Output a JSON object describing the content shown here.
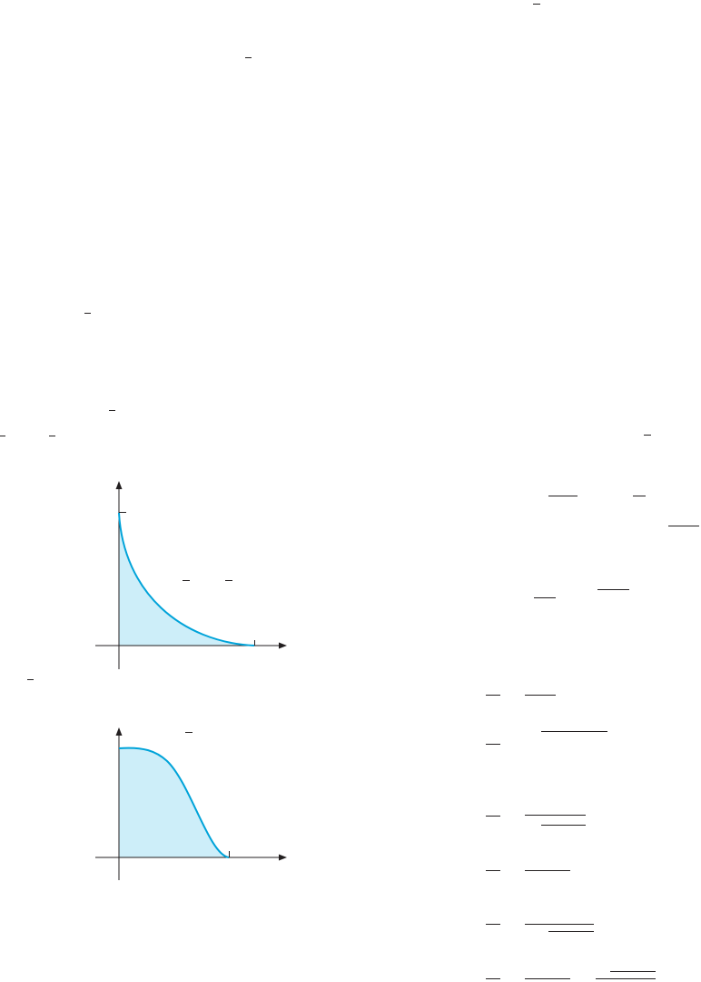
{
  "page": {
    "background": "#ffffff",
    "ink_color": "#231f20",
    "curve_color": "#00a3d9",
    "fill_color": "#cdeef9"
  },
  "figures": [
    {
      "id": "top",
      "shape": "convex curve falling from the y-axis to the x-axis, region below shaded",
      "has_x_tick": true,
      "has_y_tick": true
    },
    {
      "id": "bottom",
      "shape": "bell-shaped curve decreasing from a flat top on the y-axis to the x-axis, region below shaded",
      "has_x_tick": true,
      "has_y_tick": false
    }
  ],
  "icons": {
    "arrowhead": "arrowhead-icon"
  }
}
